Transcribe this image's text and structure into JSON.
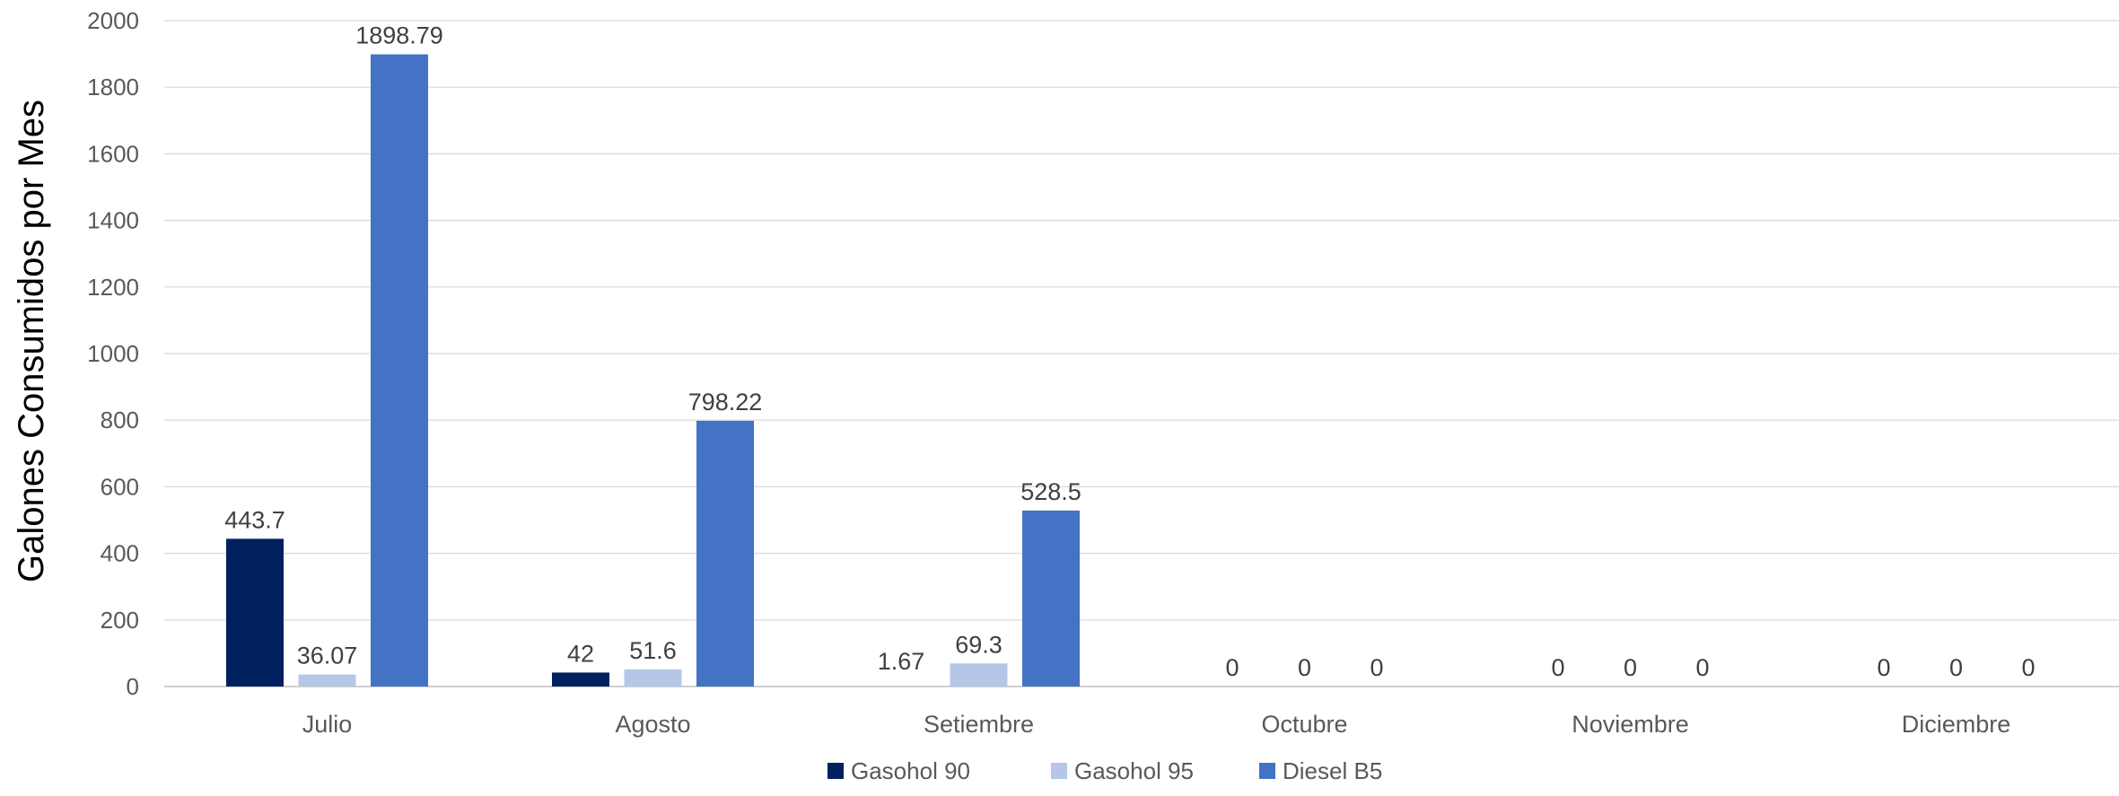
{
  "chart_data": {
    "type": "bar",
    "title": "",
    "xlabel": "",
    "ylabel": "Galones Consumidos por Mes",
    "ylim": [
      0,
      2000
    ],
    "yticks": [
      0,
      200,
      400,
      600,
      800,
      1000,
      1200,
      1400,
      1600,
      1800,
      2000
    ],
    "grid": true,
    "legend_position": "bottom",
    "categories": [
      "Julio",
      "Agosto",
      "Setiembre",
      "Octubre",
      "Noviembre",
      "Diciembre"
    ],
    "series": [
      {
        "name": "Gasohol 90",
        "color": "#002060",
        "values": [
          443.7,
          42,
          null,
          0,
          0,
          0
        ],
        "labels": [
          "443.7",
          "42",
          "",
          "0",
          "0",
          "0"
        ]
      },
      {
        "name": "Gasohol 95",
        "color": "#B4C7E7",
        "values": [
          36.07,
          51.6,
          69.3,
          0,
          0,
          0
        ],
        "labels": [
          "36.07",
          "51.6",
          "69.3",
          "0",
          "0",
          "0"
        ]
      },
      {
        "name": "Diesel B5",
        "color": "#4472C4",
        "values": [
          1898.79,
          798.22,
          528.5,
          0,
          0,
          0
        ],
        "labels": [
          "1898.79",
          "798.22",
          "528.5",
          "0",
          "0",
          "0"
        ]
      }
    ],
    "annotations": [
      {
        "category": "Setiembre",
        "text": "1.67"
      }
    ]
  }
}
